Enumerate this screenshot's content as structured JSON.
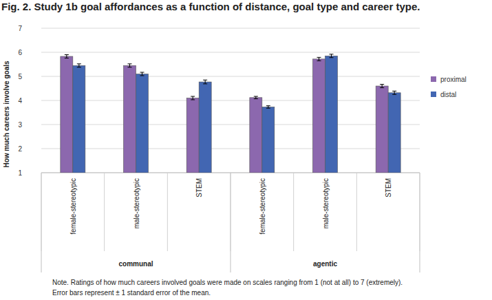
{
  "chart_data": {
    "type": "bar",
    "title": "Fig. 2. Study 1b goal affordances as a function of distance, goal type and career type.",
    "y_label": "How much careers involve goals",
    "categories": [
      "female-stereotypic",
      "male-stereotypic",
      "STEM",
      "female-stereotypic",
      "male-stereotypic",
      "STEM"
    ],
    "category_groups": [
      "communal",
      "agentic"
    ],
    "series": [
      {
        "name": "proximal",
        "color": "#8c68ae",
        "values": [
          5.83,
          5.45,
          4.1,
          4.12,
          5.72,
          4.6
        ],
        "errors": [
          0.07,
          0.07,
          0.07,
          0.05,
          0.07,
          0.07
        ]
      },
      {
        "name": "distal",
        "color": "#4266b2",
        "values": [
          5.45,
          5.1,
          4.77,
          3.73,
          5.85,
          4.32
        ],
        "errors": [
          0.07,
          0.07,
          0.08,
          0.05,
          0.07,
          0.07
        ]
      }
    ],
    "ylim": [
      1,
      7
    ],
    "yticks": [
      1,
      2,
      3,
      4,
      5,
      6,
      7
    ],
    "grid": true,
    "legend": "right",
    "note": [
      "Note. Ratings of how much careers involved goals were made on scales ranging from 1 (not at all) to 7 (extremely).",
      "Error bars represent ± 1 standard error of the mean."
    ]
  }
}
